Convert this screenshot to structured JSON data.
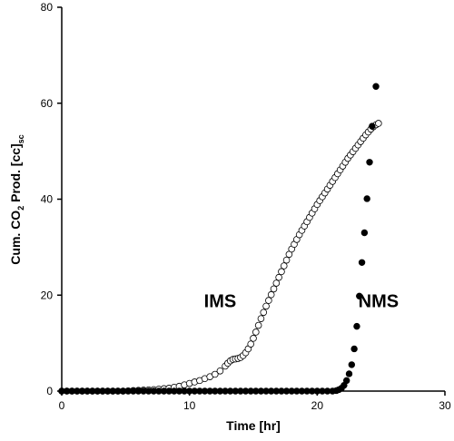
{
  "chart_data": {
    "type": "scatter",
    "title": "",
    "xlabel": "Time [hr]",
    "ylabel_parts": {
      "a": "Cum. CO",
      "sub2": "2",
      "b": " Prod. [cc]",
      "subsc": "sc"
    },
    "xlim": [
      0,
      30
    ],
    "ylim": [
      0,
      80
    ],
    "xticks": [
      "0",
      "10",
      "20",
      "30"
    ],
    "yticks": [
      "0",
      "20",
      "40",
      "60",
      "80"
    ],
    "grid": false,
    "legend": "none",
    "annotations": [
      {
        "text": "IMS",
        "x": 12.4,
        "y": 17.5
      },
      {
        "text": "NMS",
        "x": 24.8,
        "y": 17.5
      }
    ],
    "series": [
      {
        "name": "IMS",
        "marker": "open-circle",
        "color": "#000000",
        "x": [
          0.0,
          0.4,
          0.8,
          1.2,
          1.6,
          2.0,
          2.4,
          2.8,
          3.2,
          3.6,
          4.0,
          4.4,
          4.8,
          5.2,
          5.6,
          6.0,
          6.4,
          6.8,
          7.2,
          7.6,
          8.0,
          8.4,
          8.8,
          9.2,
          9.6,
          10.0,
          10.4,
          10.8,
          11.2,
          11.6,
          12.0,
          12.4,
          12.8,
          13.0,
          13.2,
          13.4,
          13.6,
          13.8,
          14.0,
          14.2,
          14.4,
          14.6,
          14.8,
          15.0,
          15.2,
          15.4,
          15.6,
          15.8,
          16.0,
          16.2,
          16.4,
          16.6,
          16.8,
          17.0,
          17.2,
          17.4,
          17.6,
          17.8,
          18.0,
          18.2,
          18.4,
          18.6,
          18.8,
          19.0,
          19.2,
          19.4,
          19.6,
          19.8,
          20.0,
          20.2,
          20.4,
          20.6,
          20.8,
          21.0,
          21.2,
          21.4,
          21.6,
          21.8,
          22.0,
          22.2,
          22.4,
          22.6,
          22.8,
          23.0,
          23.2,
          23.4,
          23.6,
          23.8,
          24.0,
          24.2,
          24.4,
          24.6,
          24.8
        ],
        "y": [
          0,
          0,
          0,
          0,
          0,
          0,
          0,
          0,
          0,
          0,
          0,
          0,
          0,
          0.05,
          0.1,
          0.15,
          0.2,
          0.25,
          0.3,
          0.4,
          0.5,
          0.6,
          0.8,
          1.0,
          1.3,
          1.6,
          1.9,
          2.2,
          2.6,
          3.0,
          3.5,
          4.2,
          5.2,
          5.8,
          6.3,
          6.6,
          6.7,
          6.8,
          7.0,
          7.4,
          8.0,
          8.8,
          9.8,
          11.0,
          12.3,
          13.7,
          15.1,
          16.4,
          17.7,
          18.9,
          20.1,
          21.3,
          22.5,
          23.7,
          24.9,
          26.1,
          27.3,
          28.5,
          29.6,
          30.6,
          31.6,
          32.6,
          33.5,
          34.4,
          35.3,
          36.2,
          37.1,
          38.0,
          38.9,
          39.7,
          40.5,
          41.3,
          42.1,
          42.9,
          43.7,
          44.5,
          45.3,
          46.1,
          46.9,
          47.7,
          48.5,
          49.2,
          49.9,
          50.6,
          51.3,
          52.0,
          52.7,
          53.4,
          54.0,
          54.6,
          55.1,
          55.5,
          55.8
        ]
      },
      {
        "name": "NMS",
        "marker": "filled-circle",
        "color": "#000000",
        "x": [
          0.0,
          0.4,
          0.8,
          1.2,
          1.6,
          2.0,
          2.4,
          2.8,
          3.2,
          3.6,
          4.0,
          4.4,
          4.8,
          5.2,
          5.6,
          6.0,
          6.4,
          6.8,
          7.2,
          7.6,
          8.0,
          8.4,
          8.8,
          9.2,
          9.6,
          10.0,
          10.4,
          10.8,
          11.2,
          11.6,
          12.0,
          12.4,
          12.8,
          13.2,
          13.6,
          14.0,
          14.4,
          14.8,
          15.2,
          15.6,
          16.0,
          16.4,
          16.8,
          17.2,
          17.6,
          18.0,
          18.4,
          18.8,
          19.2,
          19.6,
          20.0,
          20.4,
          20.8,
          21.2,
          21.5,
          21.7,
          21.9,
          22.1,
          22.3,
          22.5,
          22.7,
          22.9,
          23.1,
          23.3,
          23.5,
          23.7,
          23.9,
          24.1,
          24.3,
          24.6
        ],
        "y": [
          0,
          0,
          0,
          0,
          0,
          0,
          0,
          0,
          0,
          0,
          0,
          0,
          0,
          0,
          0,
          0,
          0,
          0,
          0,
          0,
          0,
          0,
          0,
          0,
          0,
          0,
          0,
          0,
          0,
          0,
          0,
          0,
          0,
          0,
          0,
          0,
          0,
          0,
          0,
          0,
          0,
          0,
          0,
          0,
          0,
          0,
          0,
          0,
          0,
          0,
          0,
          0,
          0,
          0,
          0.1,
          0.3,
          0.6,
          1.2,
          2.2,
          3.6,
          5.5,
          8.8,
          13.5,
          19.8,
          26.8,
          33.0,
          40.1,
          47.7,
          55.2,
          63.5
        ]
      }
    ]
  }
}
